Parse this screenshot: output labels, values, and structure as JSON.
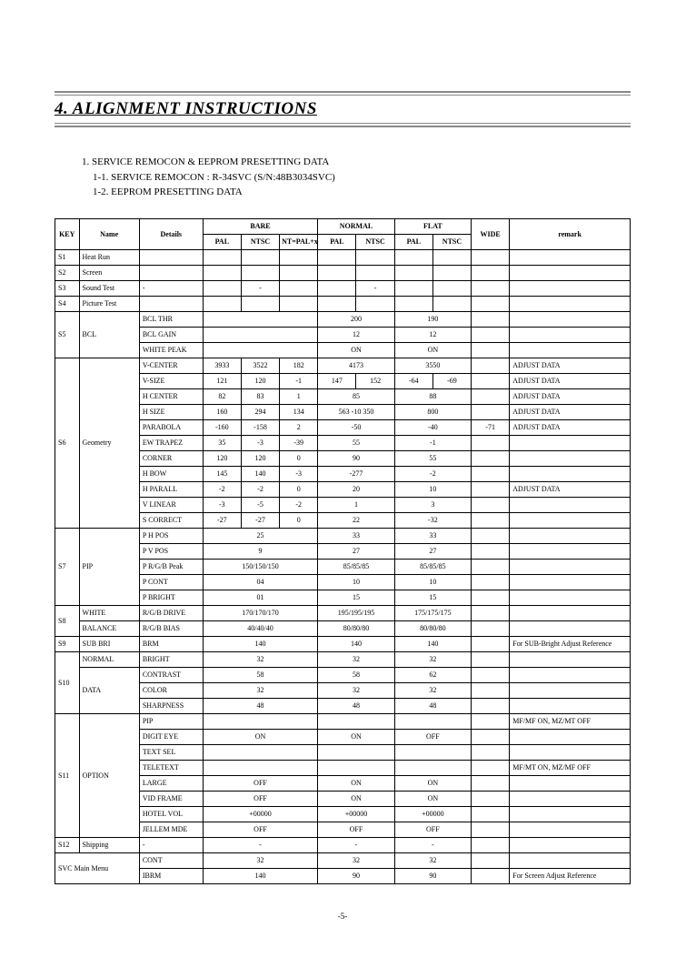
{
  "header": {
    "title": "4. ALIGNMENT INSTRUCTIONS"
  },
  "preamble": {
    "l1": "1. SERVICE REMOCON & EEPROM PRESETTING DATA",
    "l2": "1-1. SERVICE REMOCON : R-34SVC (S/N:48B3034SVC)",
    "l3": "1-2. EEPROM PRESETTING DATA"
  },
  "thead": {
    "key": "KEY",
    "name": "Name",
    "details": "Details",
    "bare": "BARE",
    "normal": "NORMAL",
    "flat": "FLAT",
    "wide": "WIDE",
    "remark": "remark",
    "pal": "PAL",
    "ntsc": "NTSC",
    "nt": "NT=PAL+xxx"
  },
  "rows": [
    {
      "key": "S1",
      "name": "Heat Run",
      "det": "",
      "b1": "",
      "b2": "",
      "b3": "",
      "n1": "",
      "n2": "",
      "f1": "",
      "f2": "",
      "w": "",
      "r": ""
    },
    {
      "key": "S2",
      "name": "Screen",
      "det": "",
      "b1": "",
      "b2": "",
      "b3": "",
      "n1": "",
      "n2": "",
      "f1": "",
      "f2": "",
      "w": "",
      "r": ""
    },
    {
      "key": "S3",
      "name": "Sound Test",
      "det": "-",
      "b1": "",
      "b2": "-",
      "b3": "",
      "n1": "",
      "n2": "-",
      "f1": "",
      "f2": "",
      "w": "",
      "r": ""
    },
    {
      "key": "S4",
      "name": "Picture Test",
      "det": "",
      "b1": "",
      "b2": "",
      "b3": "",
      "n1": "",
      "n2": "",
      "f1": "",
      "f2": "",
      "w": "",
      "r": ""
    },
    {
      "key": "S5",
      "name": "BCL",
      "det": "BCL THR",
      "b": "",
      "n": "200",
      "f": "190",
      "w": "",
      "r": "",
      "span": true
    },
    {
      "det": "BCL GAIN",
      "b": "",
      "n": "12",
      "f": "12",
      "w": "",
      "r": "",
      "span": true
    },
    {
      "det": "WHITE PEAK",
      "b": "",
      "n": "ON",
      "f": "ON",
      "w": "",
      "r": "",
      "span": true
    },
    {
      "key": "S6",
      "name": "Geometry",
      "det": "V-CENTER",
      "b1": "3933",
      "b2": "3522",
      "b3": "182",
      "n": "4173",
      "f": "3550",
      "w": "",
      "r": "ADJUST DATA",
      "span2": true
    },
    {
      "det": "V-SIZE",
      "b1": "121",
      "b2": "120",
      "b3": "-1",
      "n1": "147",
      "n2": "152",
      "f1": "-64",
      "f2": "-69",
      "w": "",
      "r": "ADJUST DATA"
    },
    {
      "det": "H CENTER",
      "b1": "82",
      "b2": "83",
      "b3": "1",
      "n": "85",
      "f": "88",
      "w": "",
      "r": "ADJUST DATA",
      "span2": true
    },
    {
      "det": "H SIZE",
      "b1": "160",
      "b2": "294",
      "b3": "134",
      "n1": "563",
      "n2": "-10",
      "n3": "350",
      "f": "800",
      "w": "",
      "r": "ADJUST DATA",
      "nsplit3": true
    },
    {
      "det": "PARABOLA",
      "b1": "-160",
      "b2": "-158",
      "b3": "2",
      "n": "-50",
      "f": "-40",
      "w": "-71",
      "r": "ADJUST DATA",
      "span2": true
    },
    {
      "det": "EW TRAPEZ",
      "b1": "35",
      "b2": "-3",
      "b3": "-39",
      "n": "55",
      "f": "-1",
      "w": "",
      "r": "",
      "span2": true
    },
    {
      "det": "CORNER",
      "b1": "120",
      "b2": "120",
      "b3": "0",
      "n": "90",
      "f": "55",
      "w": "",
      "r": "",
      "span2": true
    },
    {
      "det": "H BOW",
      "b1": "145",
      "b2": "140",
      "b3": "-3",
      "n": "-277",
      "f": "-2",
      "w": "",
      "r": "",
      "span2": true
    },
    {
      "det": "H PARALL",
      "b1": "-2",
      "b2": "-2",
      "b3": "0",
      "n": "20",
      "f": "10",
      "w": "",
      "r": "ADJUST DATA",
      "span2": true
    },
    {
      "det": "V LINEAR",
      "b1": "-3",
      "b2": "-5",
      "b3": "-2",
      "n": "1",
      "f": "3",
      "w": "",
      "r": "",
      "span2": true
    },
    {
      "det": "S CORRECT",
      "b1": "-27",
      "b2": "-27",
      "b3": "0",
      "n": "22",
      "f": "-32",
      "w": "",
      "r": "",
      "span2": true
    },
    {
      "key": "S7",
      "name": "PIP",
      "det": "P H POS",
      "b": "25",
      "n": "33",
      "f": "33",
      "w": "",
      "r": "",
      "span": true
    },
    {
      "det": "P V POS",
      "b": "9",
      "n": "27",
      "f": "27",
      "w": "",
      "r": "",
      "span": true
    },
    {
      "det": "P R/G/B Peak",
      "b": "150/150/150",
      "n": "85/85/85",
      "f": "85/85/85",
      "w": "",
      "r": "",
      "span": true
    },
    {
      "det": "P CONT",
      "b": "04",
      "n": "10",
      "f": "10",
      "w": "",
      "r": "",
      "span": true
    },
    {
      "det": "P BRIGHT",
      "b": "01",
      "n": "15",
      "f": "15",
      "w": "",
      "r": "",
      "span": true
    },
    {
      "key": "S8",
      "name": "WHITE",
      "det": "R/G/B DRIVE",
      "b": "170/170/170",
      "n": "195/195/195",
      "f": "175/175/175",
      "w": "",
      "r": "",
      "span": true
    },
    {
      "name2": "BALANCE",
      "det": "R/G/B BIAS",
      "b": "40/40/40",
      "n": "80/80/80",
      "f": "80/80/80",
      "w": "",
      "r": "",
      "span": true
    },
    {
      "key": "S9",
      "name": "SUB BRI",
      "det": "BRM",
      "b": "140",
      "n": "140",
      "f": "140",
      "w": "",
      "r": "For SUB-Bright Adjust Reference",
      "span": true
    },
    {
      "key": "S10",
      "name": "NORMAL",
      "det": "BRIGHT",
      "b": "32",
      "n": "32",
      "f": "32",
      "w": "",
      "r": "",
      "span": true
    },
    {
      "name2": "DATA",
      "det": "CONTRAST",
      "b": "58",
      "n": "58",
      "f": "62",
      "w": "",
      "r": "",
      "span": true
    },
    {
      "det": "COLOR",
      "b": "32",
      "n": "32",
      "f": "32",
      "w": "",
      "r": "",
      "span": true
    },
    {
      "det": "SHARPNESS",
      "b": "48",
      "n": "48",
      "f": "48",
      "w": "",
      "r": "",
      "span": true
    },
    {
      "key": "S11",
      "name": "OPTION",
      "det": "PIP",
      "b": "",
      "n": "",
      "f": "",
      "w": "",
      "r": "MF/MF ON, MZ/MT OFF",
      "span": true
    },
    {
      "det": "DIGIT EYE",
      "b": "ON",
      "n": "ON",
      "f": "OFF",
      "w": "",
      "r": "",
      "span": true
    },
    {
      "det": "TEXT SEL",
      "b": "",
      "n": "",
      "f": "",
      "w": "",
      "r": "",
      "span": true
    },
    {
      "det": "TELETEXT",
      "b": "",
      "n": "",
      "f": "",
      "w": "",
      "r": "MF/MT ON, MZ/MF OFF",
      "span": true
    },
    {
      "det": "LARGE",
      "b": "OFF",
      "n": "ON",
      "f": "ON",
      "w": "",
      "r": "",
      "span": true
    },
    {
      "det": "VID FRAME",
      "b": "OFF",
      "n": "ON",
      "f": "ON",
      "w": "",
      "r": "",
      "span": true
    },
    {
      "det": "HOTEL VOL",
      "b": "+00000",
      "n": "+00000",
      "f": "+00000",
      "w": "",
      "r": "",
      "span": true
    },
    {
      "det": "JELLEM MDE",
      "b": "OFF",
      "n": "OFF",
      "f": "OFF",
      "w": "",
      "r": "",
      "span": true
    },
    {
      "key": "S12",
      "name": "Shipping",
      "det": "-",
      "b": "-",
      "n": "-",
      "f": "-",
      "w": "",
      "r": "",
      "span": true
    },
    {
      "key": "SVC",
      "name": "Main Menu",
      "det": "CONT",
      "b": "32",
      "n": "32",
      "f": "32",
      "w": "",
      "r": "",
      "span": true,
      "keyspan": "SVC Main Menu"
    },
    {
      "det": "IBRM",
      "b": "140",
      "n": "90",
      "f": "90",
      "w": "",
      "r": "For Screen Adjust Reference",
      "span": true
    }
  ],
  "footer": {
    "page": "-5-"
  }
}
